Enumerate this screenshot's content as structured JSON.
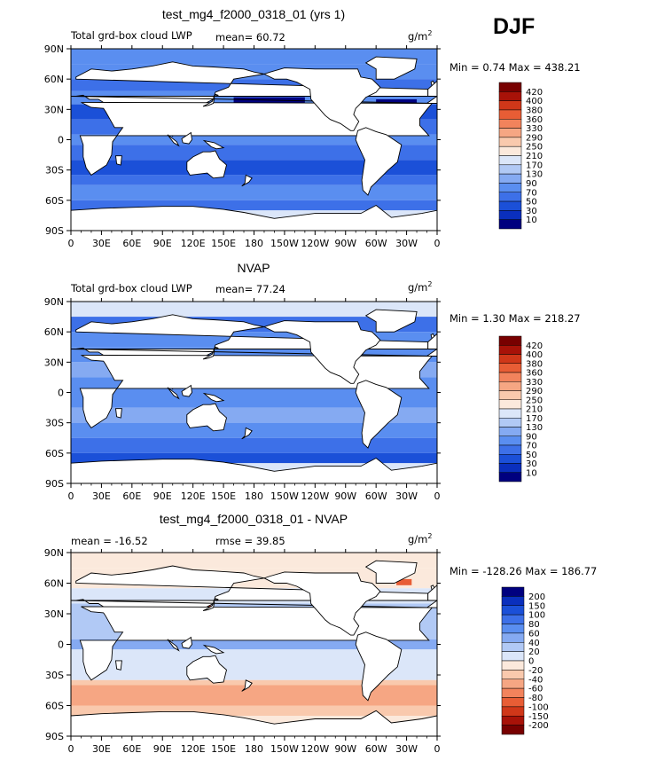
{
  "figure": {
    "season": "DJF",
    "panels": [
      {
        "title": "test_mg4_f2000_0318_01 (yrs 1)",
        "left_label": "Total grd-box cloud LWP",
        "mid_label": "mean=  60.72",
        "units": "g/m",
        "units_sup": "2",
        "stats": "Min =   0.74 Max = 438.21"
      },
      {
        "title": "NVAP",
        "left_label": "Total grd-box cloud LWP",
        "mid_label": "mean=  77.24",
        "units": "g/m",
        "units_sup": "2",
        "stats": "Min =   1.30 Max = 218.27"
      },
      {
        "title": "test_mg4_f2000_0318_01 - NVAP",
        "left_label": "mean = -16.52",
        "mid_label": "rmse =  39.85",
        "units": "g/m",
        "units_sup": "2",
        "stats": "Min = -128.26 Max = 186.77"
      }
    ]
  },
  "chart_data": [
    {
      "type": "heatmap",
      "map_projection": "cylindrical-equidistant",
      "x_ticks": [
        "0",
        "30E",
        "60E",
        "90E",
        "120E",
        "150E",
        "180",
        "150W",
        "120W",
        "90W",
        "60W",
        "30W",
        "0"
      ],
      "y_ticks": [
        "90N",
        "60N",
        "30N",
        "0",
        "30S",
        "60S",
        "90S"
      ],
      "xlim": [
        0,
        360
      ],
      "ylim": [
        -90,
        90
      ],
      "color_levels": [
        10,
        30,
        50,
        70,
        90,
        130,
        170,
        210,
        250,
        290,
        330,
        360,
        380,
        400,
        420
      ],
      "colors": [
        "#00007f",
        "#0a2fbd",
        "#1b50d8",
        "#3d70e8",
        "#5a8ef0",
        "#85aaf2",
        "#b1c9f5",
        "#dbe6f9",
        "#fbe9dc",
        "#f9c9ad",
        "#f6a683",
        "#f2835c",
        "#e85d35",
        "#d03719",
        "#a81208",
        "#780000"
      ],
      "min": 0.74,
      "max": 438.21,
      "mean": 60.72
    },
    {
      "type": "heatmap",
      "map_projection": "cylindrical-equidistant",
      "x_ticks": [
        "0",
        "30E",
        "60E",
        "90E",
        "120E",
        "150E",
        "180",
        "150W",
        "120W",
        "90W",
        "60W",
        "30W",
        "0"
      ],
      "y_ticks": [
        "90N",
        "60N",
        "30N",
        "0",
        "30S",
        "60S",
        "90S"
      ],
      "xlim": [
        0,
        360
      ],
      "ylim": [
        -90,
        90
      ],
      "color_levels": [
        10,
        30,
        50,
        70,
        90,
        130,
        170,
        210,
        250,
        290,
        330,
        360,
        380,
        400,
        420
      ],
      "colors": [
        "#00007f",
        "#0a2fbd",
        "#1b50d8",
        "#3d70e8",
        "#5a8ef0",
        "#85aaf2",
        "#b1c9f5",
        "#dbe6f9",
        "#fbe9dc",
        "#f9c9ad",
        "#f6a683",
        "#f2835c",
        "#e85d35",
        "#d03719",
        "#a81208",
        "#780000"
      ],
      "min": 1.3,
      "max": 218.27,
      "mean": 77.24
    },
    {
      "type": "heatmap",
      "map_projection": "cylindrical-equidistant",
      "x_ticks": [
        "0",
        "30E",
        "60E",
        "90E",
        "120E",
        "150E",
        "180",
        "150W",
        "120W",
        "90W",
        "60W",
        "30W",
        "0"
      ],
      "y_ticks": [
        "90N",
        "60N",
        "30N",
        "0",
        "30S",
        "60S",
        "90S"
      ],
      "xlim": [
        0,
        360
      ],
      "ylim": [
        -90,
        90
      ],
      "color_levels": [
        200,
        150,
        100,
        80,
        60,
        40,
        20,
        0,
        -20,
        -40,
        -60,
        -80,
        -100,
        -150,
        -200
      ],
      "colors": [
        "#780000",
        "#a81208",
        "#d03719",
        "#e85d35",
        "#f2835c",
        "#f6a683",
        "#f9c9ad",
        "#fbe9dc",
        "#dbe6f9",
        "#b1c9f5",
        "#85aaf2",
        "#5a8ef0",
        "#3d70e8",
        "#1b50d8",
        "#0a2fbd",
        "#00007f"
      ],
      "min": -128.26,
      "max": 186.77,
      "mean": -16.52,
      "rmse": 39.85
    }
  ]
}
